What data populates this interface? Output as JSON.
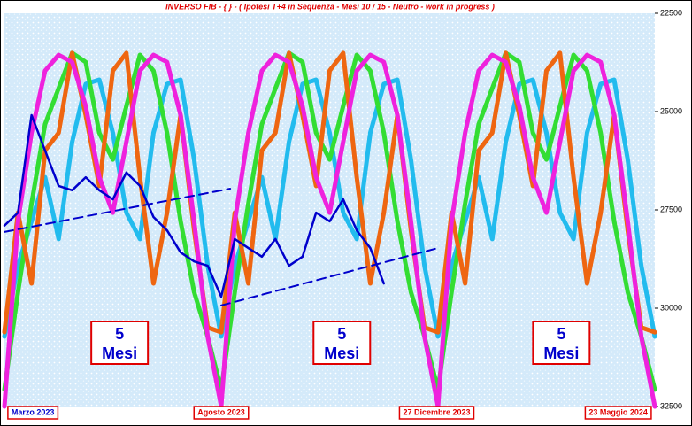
{
  "chart_data": {
    "type": "line",
    "title": "INVERSO FIB  -  { }  - ( Ipotesi T+4 in Sequenza  -  Mesi 10 / 15  -  Neutro  -   work in progress )",
    "xlim": [
      0,
      48
    ],
    "x": [
      0,
      1,
      2,
      3,
      4,
      5,
      6,
      7,
      8,
      9,
      10,
      11,
      12,
      13,
      14,
      15,
      16,
      17,
      18,
      19,
      20,
      21,
      22,
      23,
      24,
      25,
      26,
      27,
      28,
      29,
      30,
      31,
      32,
      33,
      34,
      35,
      36,
      37,
      38,
      39,
      40,
      41,
      42,
      43,
      44,
      45,
      46,
      47,
      48
    ],
    "ylim": [
      32500,
      22500
    ],
    "yticks": [
      22500,
      25000,
      27500,
      30000,
      32500
    ],
    "series": [
      {
        "color": "#22bbee",
        "values": [
          30720,
          28920,
          27790,
          26670,
          28240,
          25770,
          24300,
          24190,
          25540,
          27570,
          28240,
          25540,
          24300,
          24190,
          26220,
          28920,
          30720,
          28920,
          27790,
          26670,
          28240,
          25770,
          24300,
          24190,
          25540,
          27570,
          28240,
          25540,
          24300,
          24190,
          26220,
          28920,
          30720,
          28920,
          27790,
          26670,
          28240,
          25770,
          24300,
          24190,
          25540,
          27570,
          28240,
          25540,
          24300,
          24190,
          26220,
          28920,
          30720
        ]
      },
      {
        "color": "#33dd33",
        "values": [
          32070,
          29590,
          27340,
          25320,
          24410,
          23510,
          23740,
          25540,
          26220,
          24860,
          23560,
          23960,
          25540,
          27790,
          29590,
          30720,
          32070,
          29590,
          27340,
          25320,
          24410,
          23510,
          23740,
          25540,
          26220,
          24860,
          23560,
          23960,
          25540,
          27790,
          29590,
          30720,
          32070,
          29590,
          27340,
          25320,
          24410,
          23510,
          23740,
          25540,
          26220,
          24860,
          23560,
          23960,
          25540,
          27790,
          29590,
          30720,
          32070
        ]
      },
      {
        "color": "#ee6611",
        "values": [
          30610,
          27570,
          29370,
          25990,
          25540,
          23510,
          25090,
          26890,
          23960,
          23510,
          26670,
          29370,
          27570,
          25090,
          28020,
          30490,
          30610,
          27570,
          29370,
          25990,
          25540,
          23510,
          25090,
          26890,
          23960,
          23510,
          26670,
          29370,
          27570,
          25090,
          28020,
          30490,
          30610,
          27570,
          29370,
          25990,
          25540,
          23510,
          25090,
          26890,
          23960,
          23510,
          26670,
          29370,
          27570,
          25090,
          28020,
          30490,
          30610
        ]
      },
      {
        "color": "#ee22dd",
        "values": [
          32500,
          27790,
          25540,
          23960,
          23560,
          23740,
          24860,
          26670,
          27570,
          25770,
          23960,
          23560,
          23740,
          25090,
          27790,
          30720,
          32500,
          27790,
          25540,
          23960,
          23560,
          23740,
          24860,
          26670,
          27570,
          25770,
          23960,
          23560,
          23740,
          25090,
          27790,
          30720,
          32500,
          27790,
          25540,
          23960,
          23560,
          23740,
          24860,
          26670,
          27570,
          25770,
          23960,
          23560,
          23740,
          25090,
          27790,
          30720,
          32500
        ]
      }
    ],
    "price": {
      "color": "#0000cc",
      "x": [
        0,
        1,
        2,
        3,
        4,
        5,
        6,
        7,
        8,
        9,
        10,
        11,
        12,
        13,
        14,
        15,
        16,
        17,
        18,
        19,
        20,
        21,
        22,
        23,
        24,
        25,
        26,
        27,
        28
      ],
      "values": [
        27900,
        27570,
        25090,
        25990,
        26890,
        27000,
        26670,
        27000,
        27230,
        26550,
        26890,
        27680,
        28020,
        28580,
        28810,
        28920,
        29710,
        28240,
        28470,
        28690,
        28240,
        28920,
        28690,
        27570,
        27790,
        27230,
        28020,
        28470,
        29370
      ]
    },
    "trend_lines": [
      {
        "color": "#0000cc",
        "x": [
          0,
          16.66
        ],
        "values": [
          28060,
          26960
        ]
      },
      {
        "color": "#0000cc",
        "x": [
          16,
          32
        ],
        "values": [
          29930,
          28470
        ]
      }
    ],
    "annotations": [
      {
        "x": 8.5,
        "lines": [
          "5",
          "Mesi"
        ]
      },
      {
        "x": 24.9,
        "lines": [
          "5",
          "Mesi"
        ]
      },
      {
        "x": 41.1,
        "lines": [
          "5",
          "Mesi"
        ]
      }
    ],
    "date_labels": [
      {
        "x": 2.1,
        "text": "Marzo 2023"
      },
      {
        "x": 16,
        "text": "Agosto 2023"
      },
      {
        "x": 31.9,
        "text": "27  Dicembre 2023"
      },
      {
        "x": 45.3,
        "text": "23  Maggio 2024"
      }
    ]
  }
}
